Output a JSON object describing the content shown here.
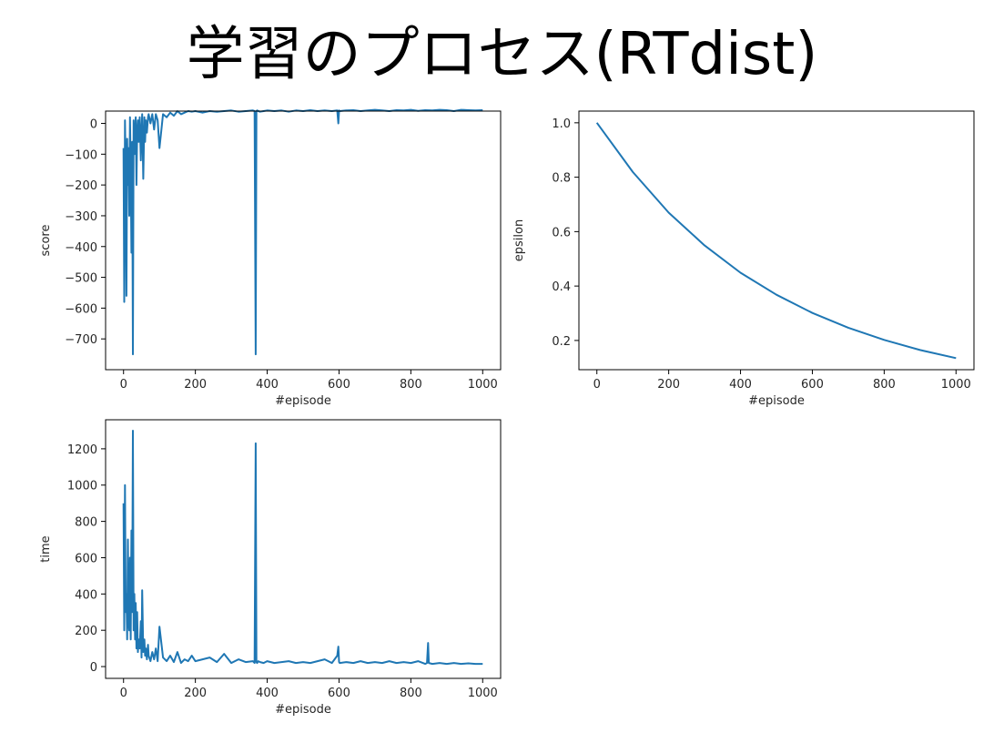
{
  "page": {
    "title": "学習のプロセス(RTdist)"
  },
  "colors": {
    "series": "#1f77b4",
    "axes": "#000000",
    "text": "#262626",
    "background": "#ffffff"
  },
  "chart_data": [
    {
      "id": "score",
      "type": "line",
      "title": "",
      "xlabel": "#episode",
      "ylabel": "score",
      "xlim": [
        -50,
        1050
      ],
      "ylim": [
        -800,
        40
      ],
      "xticks": [
        0,
        200,
        400,
        600,
        800,
        1000
      ],
      "yticks": [
        0,
        -100,
        -200,
        -300,
        -400,
        -500,
        -600,
        -700
      ],
      "ytick_labels": [
        "0",
        "−100",
        "−200",
        "−300",
        "−400",
        "−500",
        "−600",
        "−700"
      ],
      "grid": false,
      "series": [
        {
          "x": [
            0,
            2,
            4,
            6,
            8,
            10,
            12,
            14,
            16,
            18,
            20,
            22,
            24,
            26,
            28,
            30,
            32,
            34,
            36,
            38,
            40,
            42,
            45,
            48,
            50,
            52,
            55,
            58,
            60,
            62,
            65,
            68,
            70,
            75,
            80,
            85,
            90,
            95,
            100,
            110,
            120,
            130,
            140,
            150,
            160,
            170,
            180,
            190,
            200,
            220,
            240,
            260,
            280,
            300,
            320,
            340,
            360,
            365,
            368,
            370,
            372,
            375,
            380,
            390,
            400,
            420,
            440,
            460,
            480,
            500,
            520,
            540,
            560,
            580,
            595,
            598,
            600,
            602,
            620,
            640,
            660,
            680,
            700,
            720,
            740,
            760,
            780,
            800,
            820,
            840,
            860,
            880,
            900,
            920,
            940,
            960,
            980,
            1000
          ],
          "y": [
            -80,
            -580,
            10,
            -150,
            -560,
            -50,
            -200,
            -80,
            -300,
            20,
            -150,
            -420,
            -60,
            -750,
            10,
            -100,
            -40,
            20,
            -200,
            -30,
            10,
            -60,
            20,
            -120,
            -20,
            30,
            -180,
            20,
            -60,
            10,
            -30,
            20,
            30,
            0,
            30,
            -20,
            30,
            10,
            -80,
            30,
            20,
            35,
            25,
            40,
            30,
            35,
            40,
            38,
            40,
            35,
            40,
            38,
            40,
            42,
            38,
            40,
            42,
            40,
            -750,
            40,
            42,
            40,
            38,
            40,
            42,
            40,
            42,
            38,
            42,
            40,
            43,
            40,
            42,
            40,
            42,
            0,
            42,
            40,
            42,
            43,
            40,
            42,
            44,
            42,
            40,
            43,
            42,
            44,
            41,
            43,
            42,
            44,
            43,
            40,
            44,
            43,
            42,
            43
          ]
        }
      ]
    },
    {
      "id": "epsilon",
      "type": "line",
      "title": "",
      "xlabel": "#episode",
      "ylabel": "epsilon",
      "xlim": [
        -50,
        1050
      ],
      "ylim": [
        0.0926,
        1.043
      ],
      "xticks": [
        0,
        200,
        400,
        600,
        800,
        1000
      ],
      "yticks": [
        0.2,
        0.4,
        0.6,
        0.8,
        1.0
      ],
      "ytick_labels": [
        "0.2",
        "0.4",
        "0.6",
        "0.8",
        "1.0"
      ],
      "grid": false,
      "series": [
        {
          "x": [
            0,
            100,
            200,
            300,
            400,
            500,
            600,
            700,
            800,
            900,
            1000
          ],
          "y": [
            1.0,
            0.819,
            0.67,
            0.549,
            0.449,
            0.368,
            0.301,
            0.247,
            0.202,
            0.165,
            0.135
          ]
        }
      ]
    },
    {
      "id": "time",
      "type": "line",
      "title": "",
      "xlabel": "#episode",
      "ylabel": "time",
      "xlim": [
        -50,
        1050
      ],
      "ylim": [
        -65,
        1360
      ],
      "xticks": [
        0,
        200,
        400,
        600,
        800,
        1000
      ],
      "yticks": [
        0,
        200,
        400,
        600,
        800,
        1000,
        1200
      ],
      "ytick_labels": [
        "0",
        "200",
        "400",
        "600",
        "800",
        "1000",
        "1200"
      ],
      "grid": false,
      "series": [
        {
          "x": [
            0,
            2,
            4,
            6,
            8,
            10,
            12,
            14,
            16,
            18,
            20,
            22,
            24,
            26,
            28,
            30,
            32,
            34,
            36,
            38,
            40,
            42,
            45,
            48,
            50,
            52,
            55,
            58,
            60,
            62,
            65,
            68,
            70,
            75,
            80,
            85,
            90,
            95,
            100,
            110,
            120,
            130,
            140,
            150,
            160,
            170,
            180,
            190,
            200,
            220,
            240,
            260,
            280,
            300,
            320,
            340,
            360,
            365,
            368,
            370,
            372,
            375,
            380,
            390,
            400,
            420,
            440,
            460,
            480,
            500,
            520,
            540,
            560,
            580,
            595,
            598,
            600,
            602,
            620,
            640,
            660,
            680,
            700,
            720,
            740,
            760,
            780,
            800,
            820,
            840,
            845,
            848,
            850,
            860,
            880,
            900,
            920,
            940,
            960,
            980,
            1000
          ],
          "y": [
            900,
            200,
            1000,
            300,
            400,
            150,
            700,
            250,
            200,
            600,
            150,
            750,
            300,
            1300,
            200,
            400,
            150,
            350,
            100,
            300,
            80,
            150,
            100,
            250,
            50,
            420,
            80,
            150,
            60,
            100,
            40,
            120,
            60,
            30,
            80,
            40,
            100,
            30,
            220,
            50,
            30,
            60,
            25,
            80,
            20,
            40,
            30,
            60,
            30,
            40,
            50,
            25,
            70,
            20,
            40,
            25,
            30,
            20,
            1230,
            25,
            20,
            30,
            25,
            20,
            30,
            20,
            25,
            30,
            20,
            25,
            20,
            30,
            40,
            20,
            60,
            110,
            25,
            20,
            25,
            20,
            30,
            20,
            25,
            20,
            30,
            20,
            25,
            20,
            30,
            15,
            20,
            130,
            20,
            15,
            20,
            15,
            20,
            15,
            18,
            15,
            15
          ]
        }
      ]
    }
  ]
}
